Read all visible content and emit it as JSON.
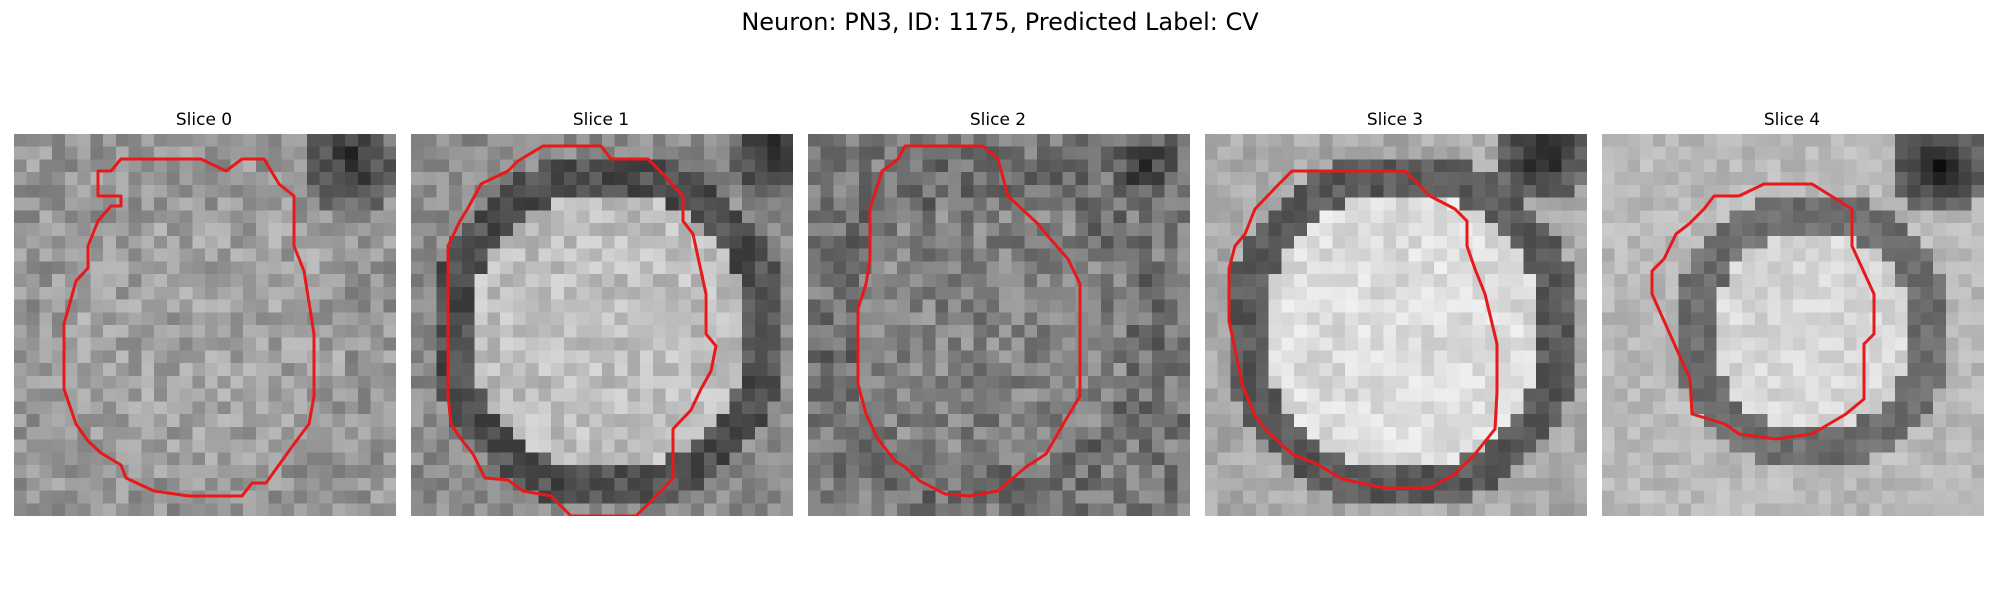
{
  "figure": {
    "title": "Neuron: PN3, ID: 1175, Predicted Label: CV",
    "outline_color": "#e8191b",
    "panels": [
      {
        "title": "Slice 0"
      },
      {
        "title": "Slice 1"
      },
      {
        "title": "Slice 2"
      },
      {
        "title": "Slice 3"
      },
      {
        "title": "Slice 4"
      }
    ]
  }
}
